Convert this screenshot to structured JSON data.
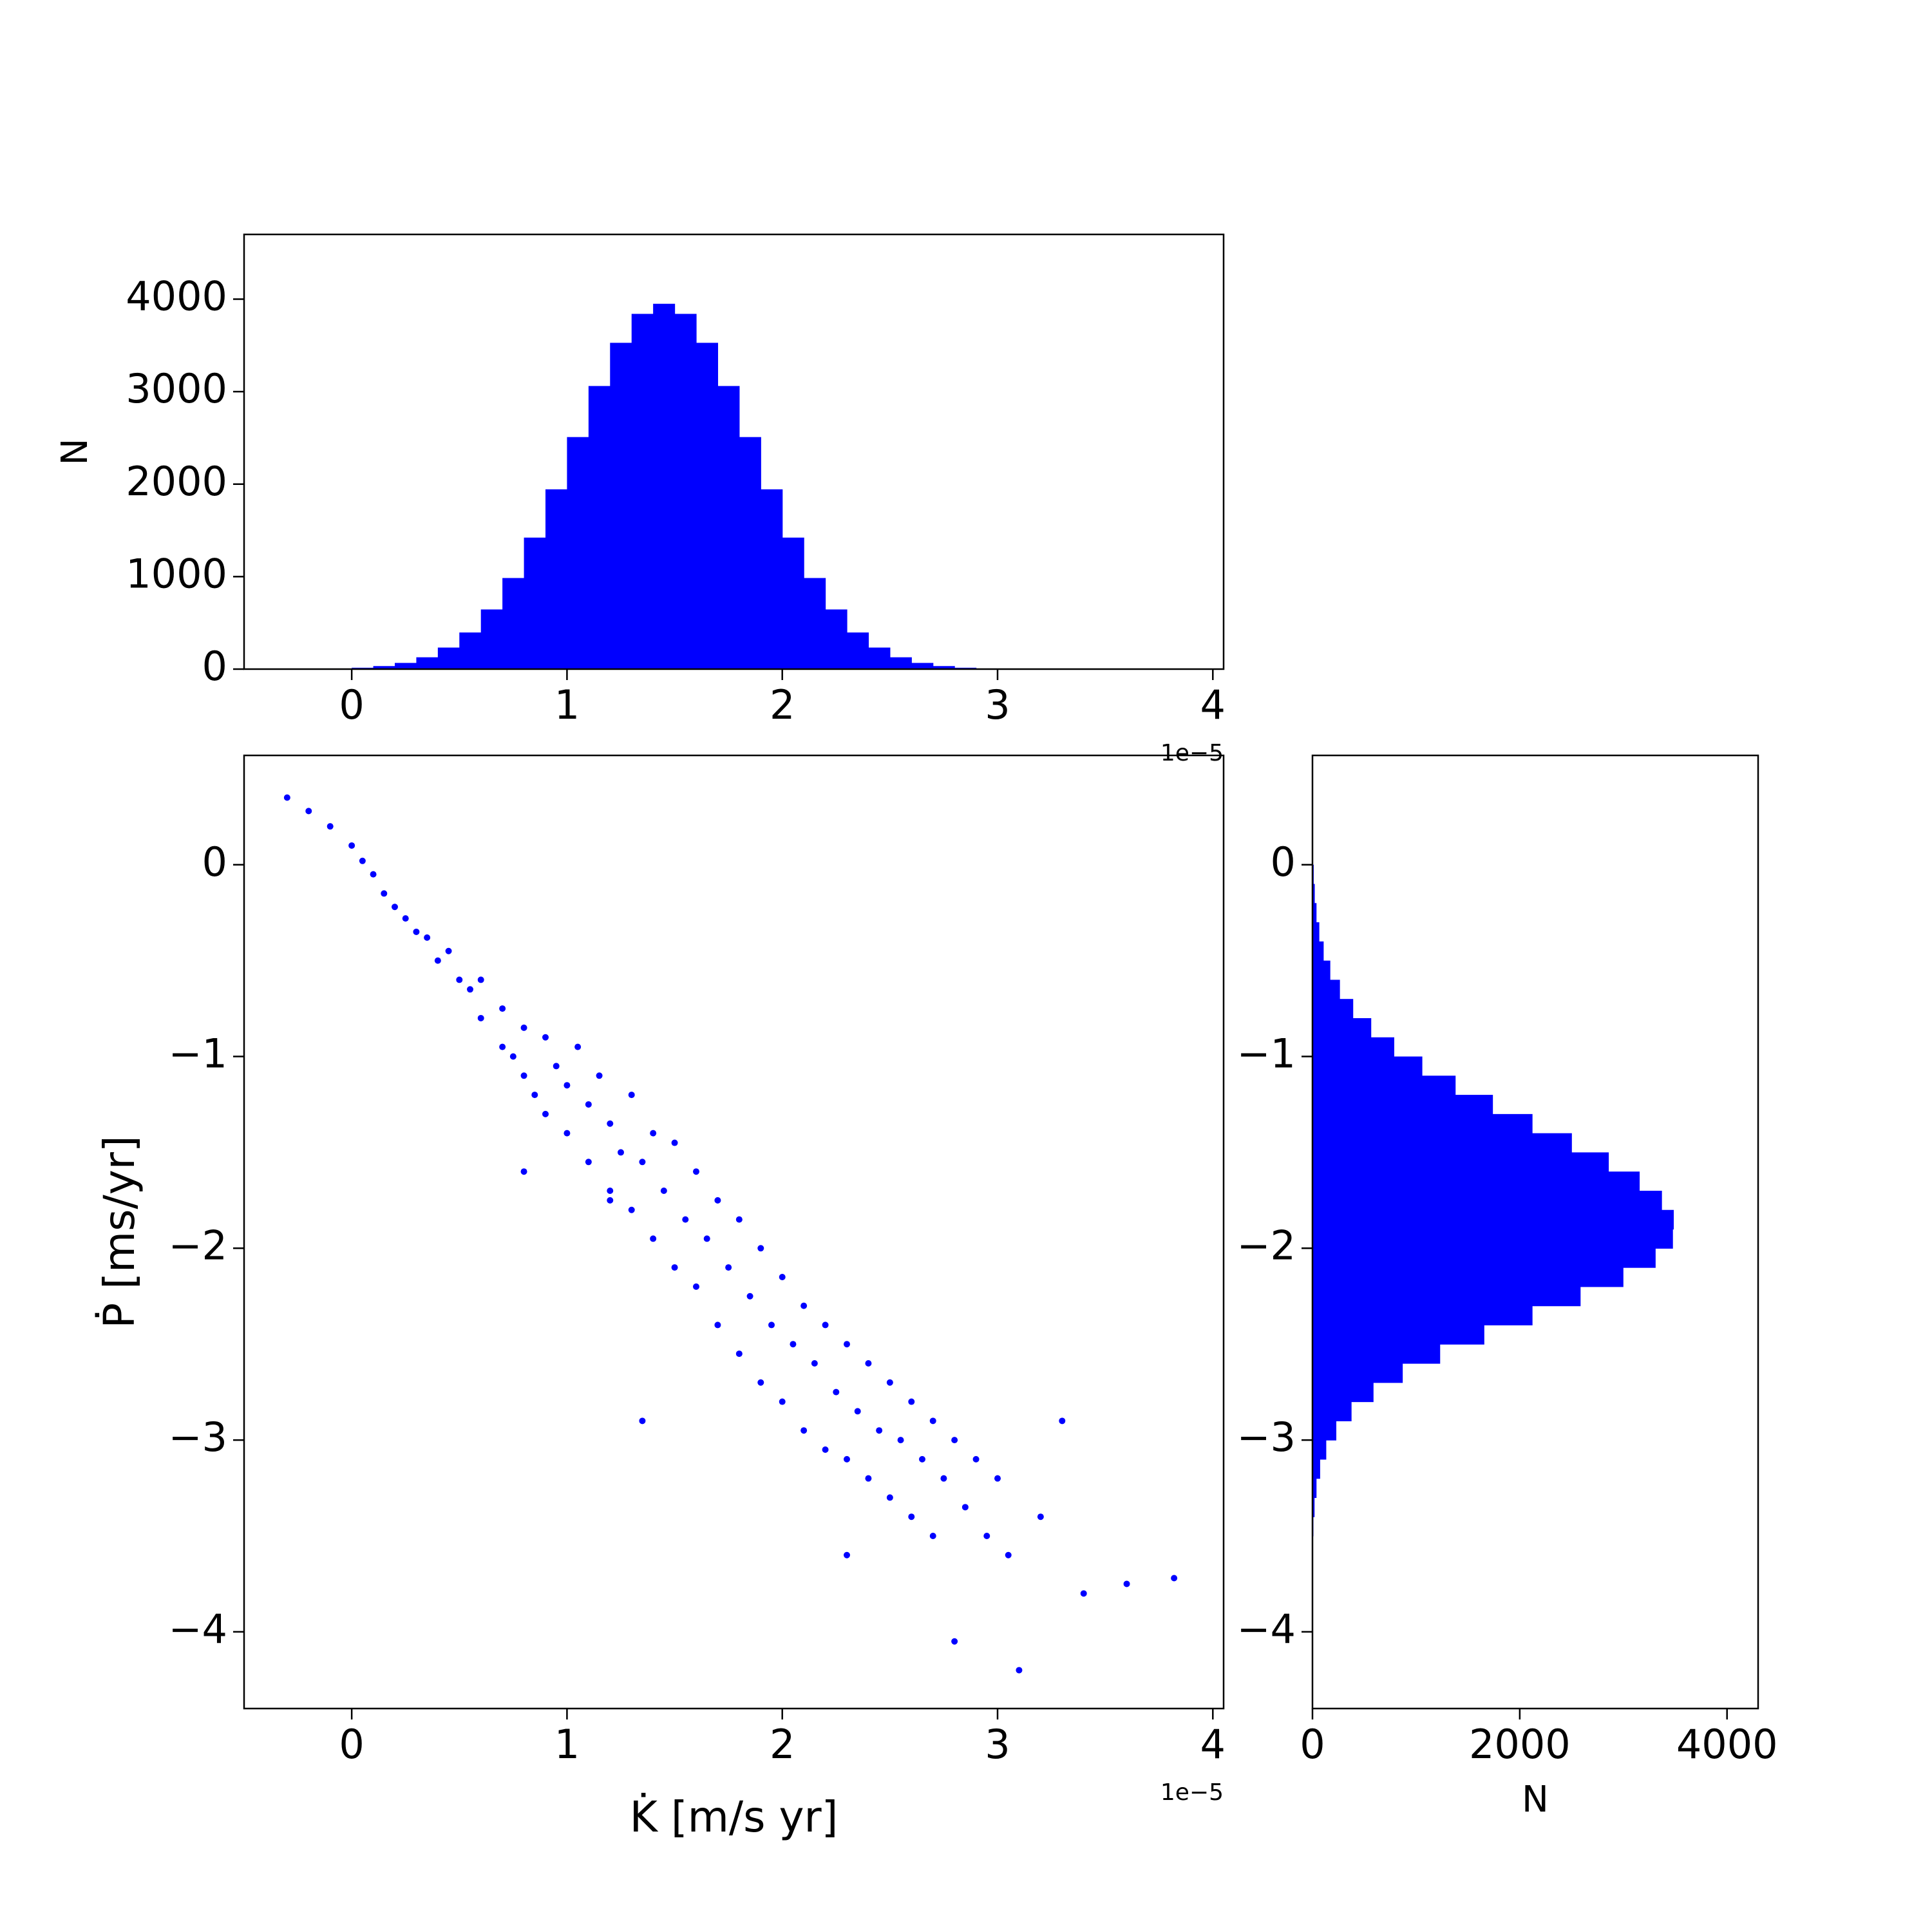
{
  "chart_data": [
    {
      "type": "histogram",
      "orientation": "vertical",
      "color": "#0000ff",
      "bins": [
        -0.3,
        -0.2,
        -0.1,
        0,
        0.1,
        0.2,
        0.3,
        0.4,
        0.5,
        0.6,
        0.7,
        0.8,
        0.9,
        1.0,
        1.1,
        1.2,
        1.3,
        1.4,
        1.5,
        1.6,
        1.7,
        1.8,
        1.9,
        2.0,
        2.1,
        2.2,
        2.3,
        2.4,
        2.5,
        2.6,
        2.7,
        2.8,
        2.9,
        3.0,
        3.1,
        3.2
      ],
      "values": [
        1,
        3,
        7,
        15,
        33,
        67,
        128,
        233,
        396,
        645,
        985,
        1422,
        1944,
        2509,
        3061,
        3528,
        3841,
        3950,
        3841,
        3528,
        3061,
        2509,
        1944,
        1422,
        985,
        645,
        396,
        233,
        128,
        67,
        33,
        15,
        7,
        3,
        1
      ],
      "xlim": [
        -0.5,
        4.05
      ],
      "xticks": [
        0,
        1,
        2,
        3,
        4
      ],
      "x_offset_label": "1e−5",
      "ylim": [
        0,
        4700
      ],
      "yticks": [
        0,
        1000,
        2000,
        3000,
        4000
      ],
      "ylabel": "N"
    },
    {
      "type": "scatter",
      "color": "#0000ff",
      "x": [
        -0.3,
        -0.2,
        -0.1,
        0,
        0.05,
        0.1,
        0.15,
        0.2,
        0.25,
        0.3,
        0.35,
        0.4,
        0.45,
        0.5,
        0.55,
        0.6,
        0.6,
        0.7,
        0.7,
        0.75,
        0.8,
        0.8,
        0.85,
        0.9,
        0.9,
        0.95,
        1.0,
        1.0,
        1.05,
        1.1,
        1.1,
        1.15,
        1.2,
        1.2,
        1.25,
        1.3,
        1.3,
        1.35,
        1.4,
        1.4,
        1.45,
        1.5,
        1.5,
        1.55,
        1.6,
        1.6,
        1.65,
        1.7,
        1.7,
        1.75,
        1.8,
        1.8,
        1.85,
        1.9,
        1.9,
        1.95,
        2.0,
        2.0,
        2.05,
        2.1,
        2.1,
        2.15,
        2.2,
        2.2,
        2.25,
        2.3,
        2.3,
        2.35,
        2.4,
        2.4,
        2.45,
        2.5,
        2.5,
        2.55,
        2.6,
        2.6,
        2.65,
        2.7,
        2.7,
        2.75,
        2.8,
        2.8,
        2.85,
        2.9,
        2.95,
        3.0,
        3.05,
        3.1,
        3.2,
        3.3,
        3.4,
        3.6,
        3.82,
        1.2,
        0.8,
        1.35,
        2.3
      ],
      "y": [
        0.35,
        0.28,
        0.2,
        0.1,
        0.02,
        -0.05,
        -0.15,
        -0.22,
        -0.28,
        -0.35,
        -0.38,
        -0.5,
        -0.45,
        -0.6,
        -0.65,
        -0.8,
        -0.6,
        -0.75,
        -0.95,
        -1.0,
        -0.85,
        -1.1,
        -1.2,
        -0.9,
        -1.3,
        -1.05,
        -1.15,
        -1.4,
        -0.95,
        -1.25,
        -1.55,
        -1.1,
        -1.35,
        -1.7,
        -1.5,
        -1.2,
        -1.8,
        -1.55,
        -1.4,
        -1.95,
        -1.7,
        -1.45,
        -2.1,
        -1.85,
        -1.6,
        -2.2,
        -1.95,
        -1.75,
        -2.4,
        -2.1,
        -1.85,
        -2.55,
        -2.25,
        -2.0,
        -2.7,
        -2.4,
        -2.15,
        -2.8,
        -2.5,
        -2.3,
        -2.95,
        -2.6,
        -2.4,
        -3.05,
        -2.75,
        -2.5,
        -3.1,
        -2.85,
        -2.6,
        -3.2,
        -2.95,
        -2.7,
        -3.3,
        -3.0,
        -2.8,
        -3.4,
        -3.1,
        -2.9,
        -3.5,
        -3.2,
        -3.0,
        -4.05,
        -3.35,
        -3.1,
        -3.5,
        -3.2,
        -3.6,
        -4.2,
        -3.4,
        -2.9,
        -3.8,
        -3.75,
        -3.72,
        -1.75,
        -1.6,
        -2.9,
        -3.6
      ],
      "xlim": [
        -0.5,
        4.05
      ],
      "xticks": [
        0,
        1,
        2,
        3,
        4
      ],
      "x_offset_label": "1e−5",
      "xlabel": "K̇ [m/s yr]",
      "ylim": [
        -4.4,
        0.57
      ],
      "yticks": [
        {
          "value": -4,
          "label": "−4"
        },
        {
          "value": -3,
          "label": "−3"
        },
        {
          "value": -2,
          "label": "−2"
        },
        {
          "value": -1,
          "label": "−1"
        },
        0
      ],
      "ylabel": "Ṗ [ms/yr]"
    },
    {
      "type": "histogram",
      "orientation": "horizontal",
      "color": "#0000ff",
      "bins": [
        -3.6,
        -3.5,
        -3.4,
        -3.3,
        -3.2,
        -3.1,
        -3.0,
        -2.9,
        -2.8,
        -2.7,
        -2.6,
        -2.5,
        -2.4,
        -2.3,
        -2.2,
        -2.1,
        -2.0,
        -1.9,
        -1.8,
        -1.7,
        -1.6,
        -1.5,
        -1.4,
        -1.3,
        -1.2,
        -1.1,
        -1.0,
        -0.9,
        -0.8,
        -0.7,
        -0.6,
        -0.5,
        -0.4,
        -0.3,
        -0.2,
        -0.1,
        0
      ],
      "values": [
        4,
        9,
        20,
        39,
        74,
        133,
        230,
        377,
        589,
        871,
        1232,
        1658,
        2123,
        2587,
        3000,
        3311,
        3478,
        3486,
        3372,
        3157,
        2859,
        2503,
        2123,
        1741,
        1381,
        1060,
        789,
        567,
        393,
        265,
        172,
        108,
        66,
        39,
        22,
        12
      ],
      "xlim": [
        0,
        4300
      ],
      "xticks": [
        0,
        2000,
        4000
      ],
      "xlabel": "N",
      "ylim": [
        -4.4,
        0.57
      ],
      "yticks": [
        {
          "value": -4,
          "label": "−4"
        },
        {
          "value": -3,
          "label": "−3"
        },
        {
          "value": -2,
          "label": "−2"
        },
        {
          "value": -1,
          "label": "−1"
        },
        0
      ]
    }
  ]
}
